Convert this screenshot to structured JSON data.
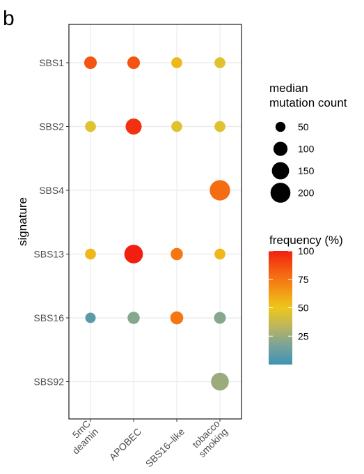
{
  "panel_label": "b",
  "chart_data": {
    "type": "scatter",
    "title": "",
    "xlabel": "",
    "ylabel": "signature",
    "x_categories": [
      "5mC\ndeamin",
      "APOBEC",
      "SBS16–like",
      "tobacco\nsmoking"
    ],
    "y_categories": [
      "SBS1",
      "SBS2",
      "SBS4",
      "SBS13",
      "SBS16",
      "SBS92"
    ],
    "points": [
      {
        "x": 0,
        "y": 0,
        "size": 80,
        "freq": 85
      },
      {
        "x": 1,
        "y": 0,
        "size": 80,
        "freq": 85
      },
      {
        "x": 2,
        "y": 0,
        "size": 60,
        "freq": 55
      },
      {
        "x": 3,
        "y": 0,
        "size": 60,
        "freq": 45
      },
      {
        "x": 0,
        "y": 1,
        "size": 60,
        "freq": 45
      },
      {
        "x": 1,
        "y": 1,
        "size": 130,
        "freq": 95
      },
      {
        "x": 2,
        "y": 1,
        "size": 60,
        "freq": 45
      },
      {
        "x": 3,
        "y": 1,
        "size": 60,
        "freq": 45
      },
      {
        "x": 3,
        "y": 2,
        "size": 210,
        "freq": 78
      },
      {
        "x": 0,
        "y": 3,
        "size": 60,
        "freq": 55
      },
      {
        "x": 1,
        "y": 3,
        "size": 175,
        "freq": 100
      },
      {
        "x": 2,
        "y": 3,
        "size": 75,
        "freq": 75
      },
      {
        "x": 3,
        "y": 3,
        "size": 60,
        "freq": 55
      },
      {
        "x": 0,
        "y": 4,
        "size": 55,
        "freq": 8
      },
      {
        "x": 1,
        "y": 4,
        "size": 75,
        "freq": 20
      },
      {
        "x": 2,
        "y": 4,
        "size": 85,
        "freq": 75
      },
      {
        "x": 3,
        "y": 4,
        "size": 70,
        "freq": 20
      },
      {
        "x": 3,
        "y": 5,
        "size": 160,
        "freq": 25
      }
    ],
    "size_legend": {
      "title": "median\nmutation count",
      "values": [
        50,
        100,
        150,
        200
      ]
    },
    "color_legend": {
      "title": "frequency (%)",
      "ticks": [
        25,
        50,
        75,
        100
      ],
      "range": [
        0,
        100
      ],
      "gradient": [
        "#3f93b5",
        "#79a399",
        "#bcb55e",
        "#ecc71c",
        "#f39215",
        "#f45b12",
        "#f21f10"
      ]
    },
    "grid": true,
    "legend_position": "right"
  }
}
